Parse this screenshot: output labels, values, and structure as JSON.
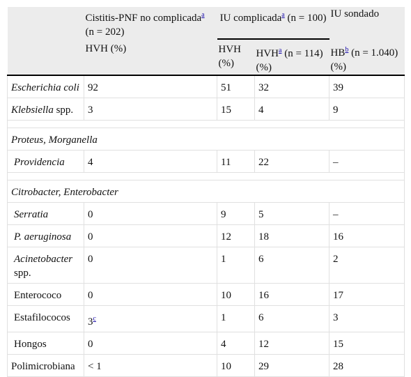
{
  "header": {
    "group1": {
      "title": "Cistitis-PNF no complicada",
      "note": "a",
      "n": "(n = 202)",
      "sub": "HVH (%)"
    },
    "group2": {
      "title": "IU complicada",
      "note": "a",
      "n": "(n = 100)",
      "sub1": "HVH (%)",
      "sub2": {
        "text": "HVH",
        "note": "a",
        "rest": "(n = 114) (%)"
      }
    },
    "group3": {
      "title": "IU sondado",
      "sub": {
        "text": "HB",
        "note": "b",
        "rest": "(n = 1.040) (%)"
      }
    }
  },
  "rows": [
    {
      "label": "Escherichia coli",
      "italic": true,
      "values": [
        "92",
        "51",
        "32",
        "39"
      ]
    },
    {
      "label": "Klebsiella",
      "label_suffix": "spp.",
      "italic": true,
      "values": [
        "3",
        "15",
        "4",
        "9"
      ]
    },
    {
      "label": "Proteus, Morganella",
      "italic": true,
      "section": true
    },
    {
      "label": "Providencia",
      "italic": true,
      "indent": true,
      "values": [
        "4",
        "11",
        "22",
        "–"
      ]
    },
    {
      "label": "Citrobacter, Enterobacter",
      "italic": true,
      "section": true
    },
    {
      "label": "Serratia",
      "italic": true,
      "indent": true,
      "values": [
        "0",
        "9",
        "5",
        "–"
      ]
    },
    {
      "label": "P. aeruginosa",
      "italic": true,
      "indent": true,
      "values": [
        "0",
        "12",
        "18",
        "16"
      ]
    },
    {
      "label": "Acinetobacter",
      "label_suffix": "spp.",
      "italic": true,
      "indent": true,
      "values": [
        "0",
        "1",
        "6",
        "2"
      ]
    },
    {
      "label": "Enterococo",
      "indent": true,
      "values": [
        "0",
        "10",
        "16",
        "17"
      ]
    },
    {
      "label": "Estafilococos",
      "indent": true,
      "values": [
        "3",
        "1",
        "6",
        "3"
      ],
      "first_value_note": "c"
    },
    {
      "label": "Hongos",
      "indent": true,
      "values": [
        "0",
        "4",
        "12",
        "15"
      ]
    },
    {
      "label": "Polimicrobiana",
      "values": [
        "< 1",
        "10",
        "29",
        "28"
      ]
    }
  ]
}
